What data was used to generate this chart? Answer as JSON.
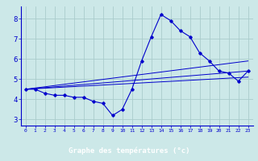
{
  "title": "Graphe des températures (°c)",
  "background_color": "#cce8e8",
  "grid_color": "#aacccc",
  "line_color": "#0000cc",
  "xlabel_bg": "#0000cc",
  "xlabel_fg": "#ffffff",
  "x_ticks": [
    0,
    1,
    2,
    3,
    4,
    5,
    6,
    7,
    8,
    9,
    10,
    11,
    12,
    13,
    14,
    15,
    16,
    17,
    18,
    19,
    20,
    21,
    22,
    23
  ],
  "y_ticks": [
    3,
    4,
    5,
    6,
    7,
    8
  ],
  "ylim": [
    2.7,
    8.6
  ],
  "xlim": [
    -0.5,
    23.5
  ],
  "series": [
    {
      "x": [
        0,
        1,
        2,
        3,
        4,
        5,
        6,
        7,
        8,
        9,
        10,
        11,
        12,
        13,
        14,
        15,
        16,
        17,
        18,
        19,
        20,
        21,
        22,
        23
      ],
      "y": [
        4.5,
        4.5,
        4.3,
        4.2,
        4.2,
        4.1,
        4.1,
        3.9,
        3.8,
        3.2,
        3.5,
        4.5,
        5.9,
        7.1,
        8.2,
        7.9,
        7.4,
        7.1,
        6.3,
        5.9,
        5.4,
        5.3,
        4.9,
        5.4
      ]
    },
    {
      "x": [
        0,
        23
      ],
      "y": [
        4.5,
        5.9
      ]
    },
    {
      "x": [
        0,
        23
      ],
      "y": [
        4.5,
        5.4
      ]
    },
    {
      "x": [
        0,
        23
      ],
      "y": [
        4.5,
        5.1
      ]
    }
  ]
}
